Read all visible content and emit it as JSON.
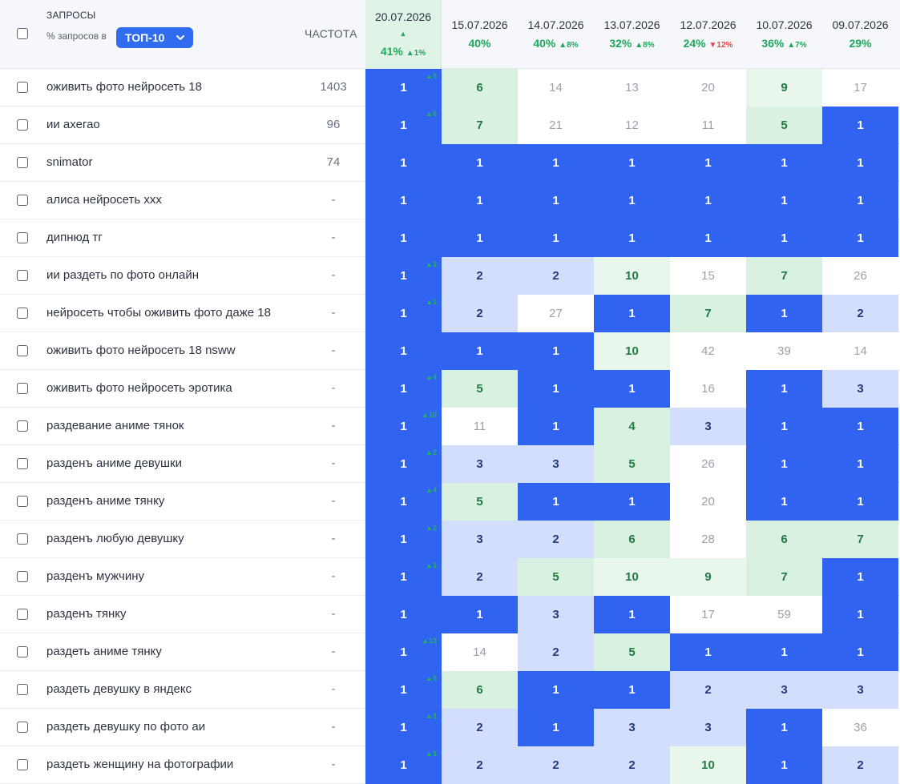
{
  "header": {
    "queries_label": "ЗАПРОСЫ",
    "pct_label": "% запросов в",
    "top_select": "ТОП-10",
    "freq_label": "ЧАСТОТА"
  },
  "dates": [
    {
      "date": "20.07.2026",
      "pct": "41%",
      "delta": "▲1%",
      "arrow": "▲",
      "dir": "up"
    },
    {
      "date": "15.07.2026",
      "pct": "40%",
      "delta": "",
      "dir": ""
    },
    {
      "date": "14.07.2026",
      "pct": "40%",
      "delta": "▲8%",
      "dir": "up"
    },
    {
      "date": "13.07.2026",
      "pct": "32%",
      "delta": "▲8%",
      "dir": "up"
    },
    {
      "date": "12.07.2026",
      "pct": "24%",
      "delta": "▼12%",
      "dir": "down"
    },
    {
      "date": "10.07.2026",
      "pct": "36%",
      "delta": "▲7%",
      "dir": "up"
    },
    {
      "date": "09.07.2026",
      "pct": "29%",
      "delta": "",
      "dir": ""
    }
  ],
  "rows": [
    {
      "kw": "оживить фото нейросеть 18",
      "freq": "1403",
      "delta": "▲5",
      "pos": [
        "1",
        "6",
        "14",
        "13",
        "20",
        "9",
        "17"
      ]
    },
    {
      "kw": "ии ахегао",
      "freq": "96",
      "delta": "▲6",
      "pos": [
        "1",
        "7",
        "21",
        "12",
        "11",
        "5",
        "1"
      ]
    },
    {
      "kw": "snimator",
      "freq": "74",
      "delta": "",
      "pos": [
        "1",
        "1",
        "1",
        "1",
        "1",
        "1",
        "1"
      ]
    },
    {
      "kw": "алиса нейросеть ххх",
      "freq": "-",
      "delta": "",
      "pos": [
        "1",
        "1",
        "1",
        "1",
        "1",
        "1",
        "1"
      ]
    },
    {
      "kw": "дипнюд тг",
      "freq": "-",
      "delta": "",
      "pos": [
        "1",
        "1",
        "1",
        "1",
        "1",
        "1",
        "1"
      ]
    },
    {
      "kw": "ии раздеть по фото онлайн",
      "freq": "-",
      "delta": "▲1",
      "pos": [
        "1",
        "2",
        "2",
        "10",
        "15",
        "7",
        "26"
      ]
    },
    {
      "kw": "нейросеть чтобы оживить фото даже 18",
      "freq": "-",
      "delta": "▲1",
      "pos": [
        "1",
        "2",
        "27",
        "1",
        "7",
        "1",
        "2"
      ]
    },
    {
      "kw": "оживить фото нейросеть 18 nsww",
      "freq": "-",
      "delta": "",
      "pos": [
        "1",
        "1",
        "1",
        "10",
        "42",
        "39",
        "14"
      ]
    },
    {
      "kw": "оживить фото нейросеть эротика",
      "freq": "-",
      "delta": "▲4",
      "pos": [
        "1",
        "5",
        "1",
        "1",
        "16",
        "1",
        "3"
      ]
    },
    {
      "kw": "раздевание аниме тянок",
      "freq": "-",
      "delta": "▲10",
      "pos": [
        "1",
        "11",
        "1",
        "4",
        "3",
        "1",
        "1"
      ]
    },
    {
      "kw": "разденъ аниме девушки",
      "freq": "-",
      "delta": "▲2",
      "pos": [
        "1",
        "3",
        "3",
        "5",
        "26",
        "1",
        "1"
      ]
    },
    {
      "kw": "разденъ аниме тянку",
      "freq": "-",
      "delta": "▲4",
      "pos": [
        "1",
        "5",
        "1",
        "1",
        "20",
        "1",
        "1"
      ]
    },
    {
      "kw": "разденъ любую девушку",
      "freq": "-",
      "delta": "▲2",
      "pos": [
        "1",
        "3",
        "2",
        "6",
        "28",
        "6",
        "7"
      ]
    },
    {
      "kw": "разденъ мужчину",
      "freq": "-",
      "delta": "▲1",
      "pos": [
        "1",
        "2",
        "5",
        "10",
        "9",
        "7",
        "1"
      ]
    },
    {
      "kw": "разденъ тянку",
      "freq": "-",
      "delta": "",
      "pos": [
        "1",
        "1",
        "3",
        "1",
        "17",
        "59",
        "1"
      ]
    },
    {
      "kw": "раздеть аниме тянку",
      "freq": "-",
      "delta": "▲13",
      "pos": [
        "1",
        "14",
        "2",
        "5",
        "1",
        "1",
        "1"
      ]
    },
    {
      "kw": "раздеть девушку в яндекс",
      "freq": "-",
      "delta": "▲5",
      "pos": [
        "1",
        "6",
        "1",
        "1",
        "2",
        "3",
        "3"
      ]
    },
    {
      "kw": "раздеть девушку по фото аи",
      "freq": "-",
      "delta": "▲1",
      "pos": [
        "1",
        "2",
        "1",
        "3",
        "3",
        "1",
        "36"
      ]
    },
    {
      "kw": "раздеть женщину на фотографии",
      "freq": "-",
      "delta": "▲1",
      "pos": [
        "1",
        "2",
        "2",
        "2",
        "10",
        "1",
        "2"
      ]
    }
  ],
  "colors": {
    "top": "#2f63f0",
    "blue": "#d2defb",
    "green": "#d8f1e0",
    "light_green": "#e8f6ec",
    "up": "#1fa85a",
    "down": "#e5484d"
  }
}
